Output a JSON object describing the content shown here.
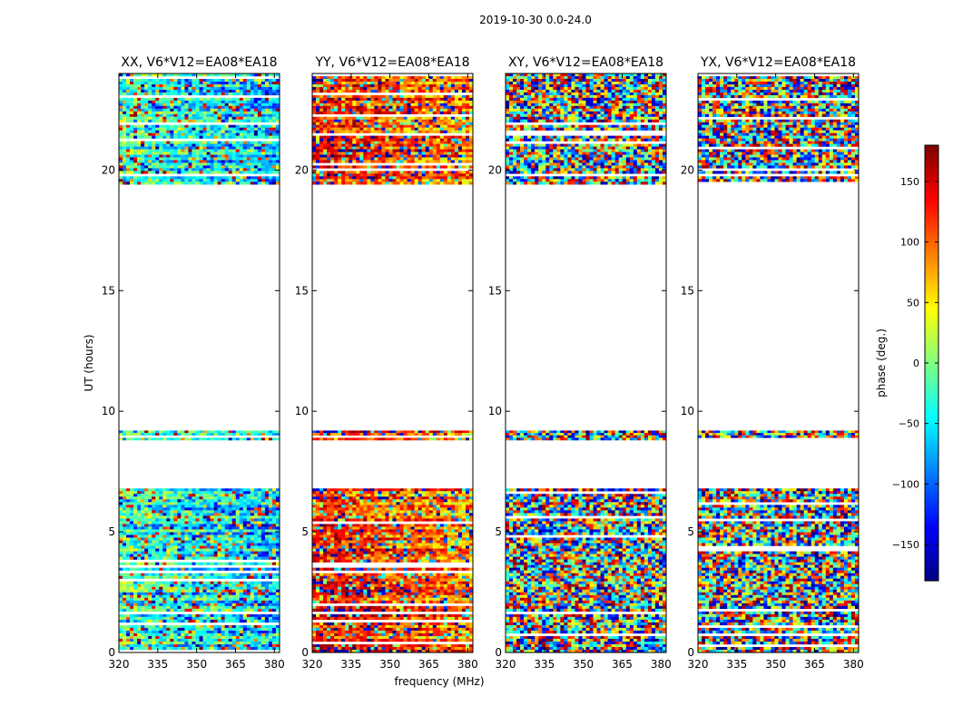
{
  "suptitle": "2019-10-30 0.0-24.0",
  "chart_data": {
    "type": "heatmap",
    "ylabel": "UT (hours)",
    "xlabel": "frequency (MHz)",
    "xlim": [
      320,
      382
    ],
    "ylim": [
      0,
      24
    ],
    "x_ticks": [
      320,
      335,
      350,
      365,
      380
    ],
    "y_ticks": [
      0,
      5,
      10,
      15,
      20
    ],
    "colormap": "jet",
    "colorbar": {
      "label": "phase (deg.)",
      "range": [
        -180,
        180
      ],
      "ticks": [
        -150,
        -100,
        -50,
        0,
        50,
        100,
        150
      ]
    },
    "data_present_hours": [
      [
        0,
        6.8
      ],
      [
        8.8,
        9.2
      ],
      [
        19.4,
        24
      ]
    ],
    "panels": [
      {
        "title": "XX, V6*V12=EA08*EA18",
        "dominant_phase_deg": -20
      },
      {
        "title": "YY, V6*V12=EA08*EA18",
        "dominant_phase_deg": 140
      },
      {
        "title": "XY, V6*V12=EA08*EA18",
        "dominant_phase_deg": null
      },
      {
        "title": "YX, V6*V12=EA08*EA18",
        "dominant_phase_deg": null
      }
    ]
  }
}
